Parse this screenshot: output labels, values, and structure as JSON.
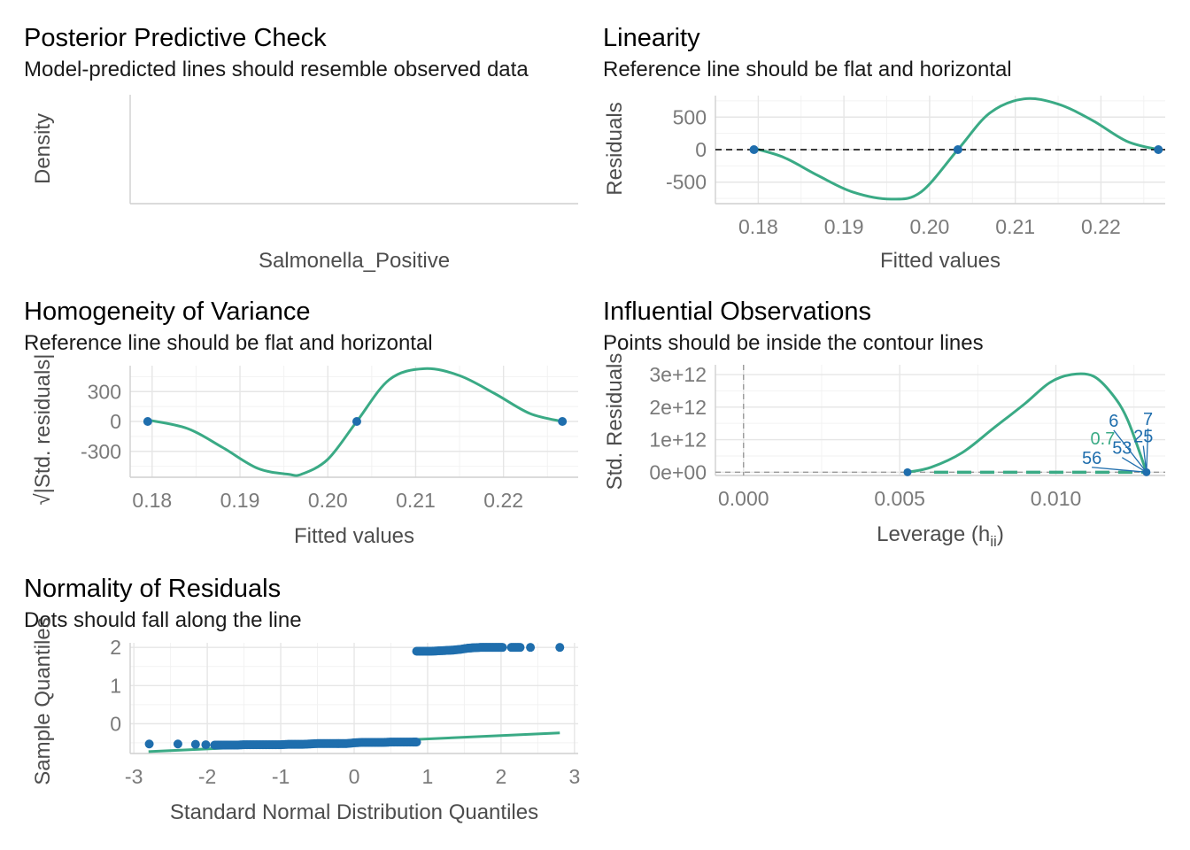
{
  "colors": {
    "point": "#1f6ead",
    "curve": "#3aaa85",
    "reference": "#000000",
    "contour": "#3aaa85"
  },
  "chart_data": [
    {
      "id": "ppc",
      "type": "line",
      "title": "Posterior Predictive Check",
      "subtitle": "Model-predicted lines should resemble observed data",
      "xlabel": "Salmonella_Positive",
      "ylabel": "Density",
      "series": []
    },
    {
      "id": "linearity",
      "type": "scatter",
      "title": "Linearity",
      "subtitle": "Reference line should be flat and horizontal",
      "xlabel": "Fitted values",
      "ylabel": "Residuals",
      "xlim": [
        0.175,
        0.2275
      ],
      "ylim": [
        -830,
        830
      ],
      "x_ticks": [
        0.18,
        0.19,
        0.2,
        0.21,
        0.22
      ],
      "x_tick_labels": [
        "0.18",
        "0.19",
        "0.20",
        "0.21",
        "0.22"
      ],
      "y_ticks": [
        -500,
        0,
        500
      ],
      "y_tick_labels": [
        "-500",
        "0",
        "500"
      ],
      "reference_line": 0,
      "points": [
        {
          "x": 0.1795,
          "y": 0
        },
        {
          "x": 0.2033,
          "y": 0
        },
        {
          "x": 0.2267,
          "y": 0
        }
      ],
      "curve": [
        [
          0.1795,
          20
        ],
        [
          0.183,
          -120
        ],
        [
          0.187,
          -400
        ],
        [
          0.191,
          -650
        ],
        [
          0.1955,
          -760
        ],
        [
          0.199,
          -650
        ],
        [
          0.2033,
          0
        ],
        [
          0.207,
          560
        ],
        [
          0.211,
          780
        ],
        [
          0.215,
          700
        ],
        [
          0.219,
          450
        ],
        [
          0.223,
          130
        ],
        [
          0.2267,
          0
        ]
      ]
    },
    {
      "id": "homogeneity",
      "type": "scatter",
      "title": "Homogeneity of Variance",
      "subtitle": "Reference line should be flat and horizontal",
      "xlabel": "Fitted values",
      "ylabel": "√|Std. residuals|",
      "xlim": [
        0.1775,
        0.2285
      ],
      "ylim": [
        -560,
        560
      ],
      "x_ticks": [
        0.18,
        0.19,
        0.2,
        0.21,
        0.22
      ],
      "x_tick_labels": [
        "0.18",
        "0.19",
        "0.20",
        "0.21",
        "0.22"
      ],
      "y_ticks": [
        -300,
        0,
        300
      ],
      "y_tick_labels": [
        "-300",
        "0",
        "300"
      ],
      "points": [
        {
          "x": 0.1795,
          "y": 0
        },
        {
          "x": 0.2033,
          "y": 0
        },
        {
          "x": 0.2267,
          "y": 0
        }
      ],
      "curve": [
        [
          0.1795,
          15
        ],
        [
          0.184,
          -70
        ],
        [
          0.188,
          -260
        ],
        [
          0.192,
          -470
        ],
        [
          0.1955,
          -530
        ],
        [
          0.197,
          -530
        ],
        [
          0.2,
          -380
        ],
        [
          0.2033,
          0
        ],
        [
          0.207,
          420
        ],
        [
          0.211,
          530
        ],
        [
          0.215,
          460
        ],
        [
          0.219,
          280
        ],
        [
          0.223,
          80
        ],
        [
          0.2267,
          0
        ]
      ]
    },
    {
      "id": "influential",
      "type": "scatter",
      "title": "Influential Observations",
      "subtitle": "Points should be inside the contour lines",
      "xlabel": "Leverage (h",
      "xlabel_sub": "ii",
      "xlabel_end": ")",
      "ylabel": "Std. Residuals",
      "xlim": [
        -0.0009,
        0.0135
      ],
      "ylim": [
        -100000000000.0,
        3300000000000.0
      ],
      "x_ticks": [
        0.0,
        0.005,
        0.01
      ],
      "x_tick_labels": [
        "0.000",
        "0.005",
        "0.010"
      ],
      "y_ticks": [
        0,
        1000000000000.0,
        2000000000000.0,
        3000000000000.0
      ],
      "y_tick_labels": [
        "0e+00",
        "1e+12",
        "2e+12",
        "3e+12"
      ],
      "points": [
        {
          "x": 0.00525,
          "y": 0
        },
        {
          "x": 0.0129,
          "y": 0
        }
      ],
      "contour_curve": [
        [
          0.00525,
          0
        ],
        [
          0.006,
          150000000000.0
        ],
        [
          0.007,
          600000000000.0
        ],
        [
          0.008,
          1350000000000.0
        ],
        [
          0.009,
          2100000000000.0
        ],
        [
          0.0098,
          2750000000000.0
        ],
        [
          0.0105,
          3000000000000.0
        ],
        [
          0.0112,
          2950000000000.0
        ],
        [
          0.0118,
          2400000000000.0
        ],
        [
          0.0123,
          1600000000000.0
        ],
        [
          0.0129,
          0
        ]
      ],
      "contour_label": "0.7",
      "point_labels": [
        {
          "text": "7",
          "tx": 0.01295,
          "ty": 1450000000000.0
        },
        {
          "text": "6",
          "tx": 0.01185,
          "ty": 1400000000000.0
        },
        {
          "text": "25",
          "tx": 0.0128,
          "ty": 920000000000.0
        },
        {
          "text": "53",
          "tx": 0.01212,
          "ty": 560000000000.0
        },
        {
          "text": "56",
          "tx": 0.01115,
          "ty": 260000000000.0
        }
      ]
    },
    {
      "id": "normality",
      "type": "scatter",
      "title": "Normality of Residuals",
      "subtitle": "Dots should fall along the line",
      "xlabel": "Standard Normal Distribution Quantiles",
      "ylabel": "Sample Quantiles",
      "xlim": [
        -3.05,
        3.05
      ],
      "ylim": [
        -0.78,
        2.12
      ],
      "x_ticks": [
        -3,
        -2,
        -1,
        0,
        1,
        2,
        3
      ],
      "x_tick_labels": [
        "-3",
        "-2",
        "-1",
        "0",
        "1",
        "2",
        "3"
      ],
      "y_ticks": [
        0,
        1,
        2
      ],
      "y_tick_labels": [
        "0",
        "1",
        "2"
      ],
      "reference_line": [
        [
          -2.8,
          -0.73
        ],
        [
          2.8,
          -0.24
        ]
      ],
      "lower_points": [
        [
          -2.79,
          -0.53
        ],
        [
          -2.4,
          -0.53
        ],
        [
          -2.16,
          -0.54
        ],
        [
          -2.02,
          -0.55
        ],
        [
          -1.9,
          -0.56
        ],
        [
          -1.8,
          -0.56
        ],
        [
          -1.7,
          -0.56
        ],
        [
          -1.6,
          -0.56
        ],
        [
          -1.5,
          -0.55
        ],
        [
          -1.4,
          -0.55
        ],
        [
          -1.3,
          -0.55
        ],
        [
          -1.2,
          -0.55
        ],
        [
          -1.1,
          -0.55
        ],
        [
          -1.0,
          -0.55
        ],
        [
          -0.9,
          -0.54
        ],
        [
          -0.8,
          -0.54
        ],
        [
          -0.7,
          -0.54
        ],
        [
          -0.6,
          -0.53
        ],
        [
          -0.5,
          -0.52
        ],
        [
          -0.4,
          -0.52
        ],
        [
          -0.3,
          -0.52
        ],
        [
          -0.2,
          -0.52
        ],
        [
          -0.1,
          -0.52
        ],
        [
          0.0,
          -0.5
        ],
        [
          0.1,
          -0.49
        ],
        [
          0.2,
          -0.49
        ],
        [
          0.3,
          -0.49
        ],
        [
          0.4,
          -0.49
        ],
        [
          0.5,
          -0.48
        ],
        [
          0.6,
          -0.48
        ],
        [
          0.7,
          -0.48
        ],
        [
          0.8,
          -0.48
        ],
        [
          0.85,
          -0.48
        ]
      ],
      "upper_points": [
        [
          0.85,
          1.9
        ],
        [
          0.95,
          1.9
        ],
        [
          1.05,
          1.9
        ],
        [
          1.15,
          1.91
        ],
        [
          1.25,
          1.92
        ],
        [
          1.35,
          1.93
        ],
        [
          1.45,
          1.95
        ],
        [
          1.55,
          1.98
        ],
        [
          1.62,
          1.99
        ],
        [
          1.72,
          2.0
        ],
        [
          1.82,
          2.0
        ],
        [
          1.92,
          2.0
        ],
        [
          2.02,
          2.0
        ],
        [
          2.14,
          2.0
        ],
        [
          2.26,
          2.0
        ],
        [
          2.4,
          2.0
        ],
        [
          2.8,
          2.0
        ]
      ]
    }
  ]
}
